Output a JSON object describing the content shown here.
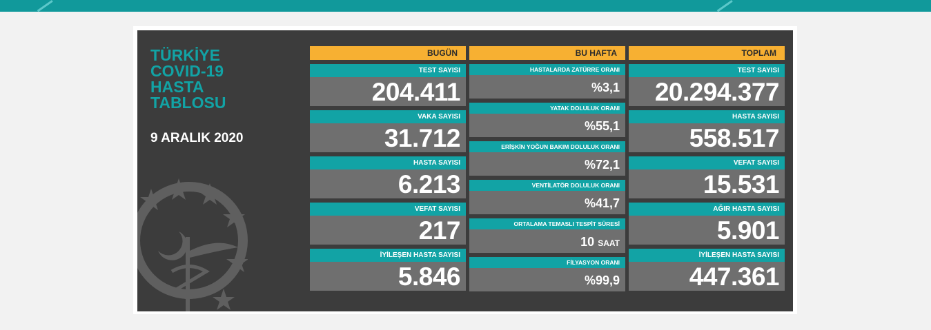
{
  "header": {
    "title_lines": [
      "TÜRKİYE",
      "COVID-19",
      "HASTA",
      "TABLOSU"
    ],
    "date": "9 ARALIK 2020"
  },
  "columns": {
    "today": {
      "heading": "BUGÜN",
      "stats": [
        {
          "label": "TEST SAYISI",
          "value": "204.411"
        },
        {
          "label": "VAKA SAYISI",
          "value": "31.712"
        },
        {
          "label": "HASTA SAYISI",
          "value": "6.213"
        },
        {
          "label": "VEFAT SAYISI",
          "value": "217"
        },
        {
          "label": "İYİLEŞEN HASTA SAYISI",
          "value": "5.846"
        }
      ]
    },
    "week": {
      "heading": "BU HAFTA",
      "stats": [
        {
          "label": "HASTALARDA ZATÜRRE ORANI",
          "value": "%3,1"
        },
        {
          "label": "YATAK DOLULUK ORANI",
          "value": "%55,1"
        },
        {
          "label": "ERİŞKİN YOĞUN BAKIM DOLULUK ORANI",
          "value": "%72,1"
        },
        {
          "label": "VENTİLATÖR DOLULUK ORANI",
          "value": "%41,7"
        },
        {
          "label": "ORTALAMA TEMASLI TESPİT SÜRESİ",
          "value": "10",
          "unit": "SAAT"
        },
        {
          "label": "FİLYASYON ORANI",
          "value": "%99,9"
        }
      ]
    },
    "total": {
      "heading": "TOPLAM",
      "stats": [
        {
          "label": "TEST SAYISI",
          "value": "20.294.377"
        },
        {
          "label": "HASTA SAYISI",
          "value": "558.517"
        },
        {
          "label": "VEFAT SAYISI",
          "value": "15.531"
        },
        {
          "label": "AĞIR HASTA SAYISI",
          "value": "5.901"
        },
        {
          "label": "İYİLEŞEN HASTA SAYISI",
          "value": "447.361"
        }
      ]
    }
  },
  "colors": {
    "teal": "#12a3a5",
    "orange": "#f7b032",
    "panel": "#3c3c3c",
    "cell": "#6f6f6f"
  }
}
